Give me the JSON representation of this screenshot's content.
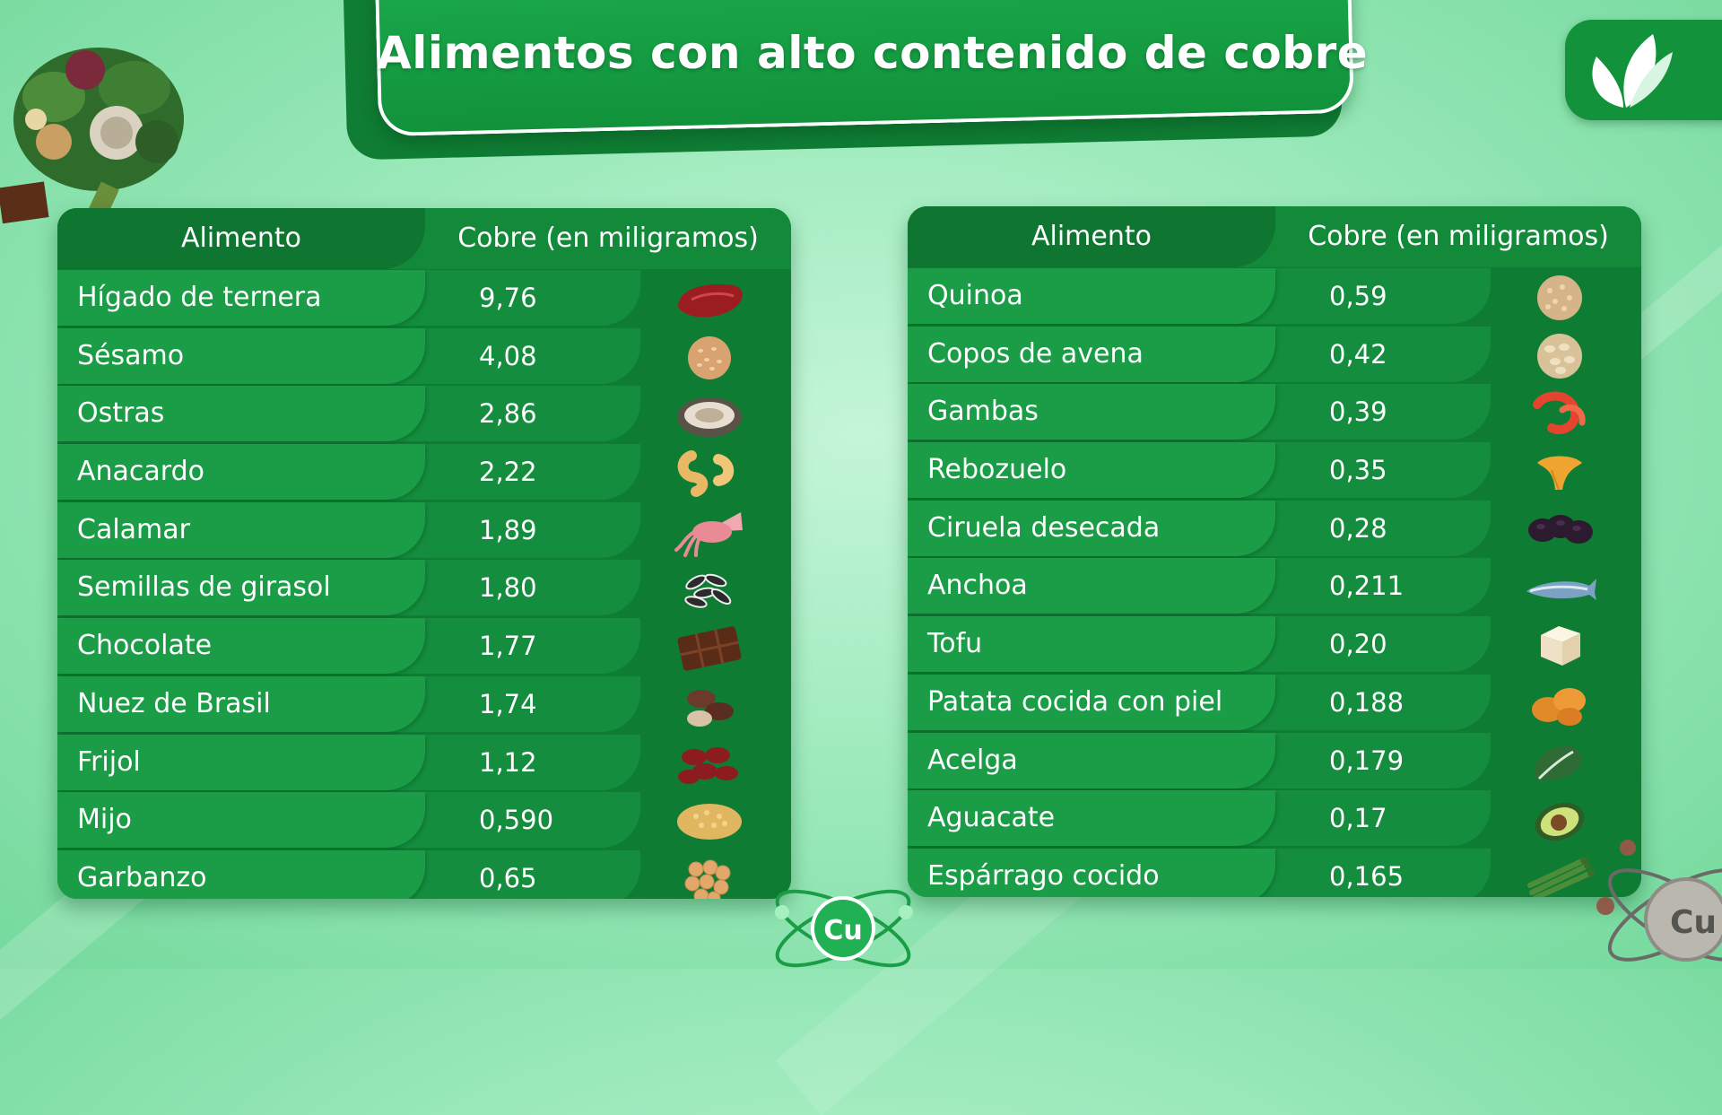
{
  "title": "Alimentos con alto contenido de cobre",
  "headers": {
    "food": "Alimento",
    "copper": "Cobre (en miligramos)"
  },
  "left_table": [
    {
      "food": "Hígado de ternera",
      "copper": "9,76",
      "icon": "liver-icon"
    },
    {
      "food": "Sésamo",
      "copper": "4,08",
      "icon": "sesame-icon"
    },
    {
      "food": "Ostras",
      "copper": "2,86",
      "icon": "oyster-icon"
    },
    {
      "food": "Anacardo",
      "copper": "2,22",
      "icon": "cashew-icon"
    },
    {
      "food": "Calamar",
      "copper": "1,89",
      "icon": "squid-icon"
    },
    {
      "food": "Semillas de girasol",
      "copper": "1,80",
      "icon": "sunflower-seeds-icon"
    },
    {
      "food": "Chocolate",
      "copper": "1,77",
      "icon": "chocolate-icon"
    },
    {
      "food": "Nuez de Brasil",
      "copper": "1,74",
      "icon": "brazil-nut-icon"
    },
    {
      "food": "Frijol",
      "copper": "1,12",
      "icon": "bean-icon"
    },
    {
      "food": "Mijo",
      "copper": "0,590",
      "icon": "millet-icon"
    },
    {
      "food": "Garbanzo",
      "copper": "0,65",
      "icon": "chickpea-icon"
    }
  ],
  "right_table": [
    {
      "food": "Quinoa",
      "copper": "0,59",
      "icon": "quinoa-icon"
    },
    {
      "food": "Copos de avena",
      "copper": "0,42",
      "icon": "oat-flakes-icon"
    },
    {
      "food": "Gambas",
      "copper": "0,39",
      "icon": "shrimp-icon"
    },
    {
      "food": "Rebozuelo",
      "copper": "0,35",
      "icon": "chanterelle-icon"
    },
    {
      "food": "Ciruela desecada",
      "copper": "0,28",
      "icon": "prune-icon"
    },
    {
      "food": "Anchoa",
      "copper": "0,211",
      "icon": "anchovy-icon"
    },
    {
      "food": "Tofu",
      "copper": "0,20",
      "icon": "tofu-icon"
    },
    {
      "food": "Patata cocida con piel",
      "copper": "0,188",
      "icon": "potato-icon"
    },
    {
      "food": "Acelga",
      "copper": "0,179",
      "icon": "chard-icon"
    },
    {
      "food": "Aguacate",
      "copper": "0,17",
      "icon": "avocado-icon"
    },
    {
      "food": "Espárrago cocido",
      "copper": "0,165",
      "icon": "asparagus-icon"
    }
  ],
  "atom_label": "Cu",
  "colors": {
    "banner": "#11923b",
    "table_dark": "#0f7c34",
    "table_mid": "#148e3e",
    "table_light": "#1a9d46",
    "background": "#9deabc"
  }
}
